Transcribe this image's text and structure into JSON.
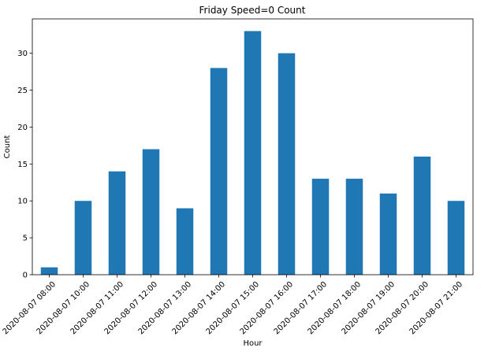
{
  "chart_data": {
    "type": "bar",
    "title": "Friday Speed=0 Count",
    "xlabel": "Hour",
    "ylabel": "Count",
    "categories": [
      "2020-08-07 08:00",
      "2020-08-07 10:00",
      "2020-08-07 11:00",
      "2020-08-07 12:00",
      "2020-08-07 13:00",
      "2020-08-07 14:00",
      "2020-08-07 15:00",
      "2020-08-07 16:00",
      "2020-08-07 17:00",
      "2020-08-07 18:00",
      "2020-08-07 19:00",
      "2020-08-07 20:00",
      "2020-08-07 21:00"
    ],
    "values": [
      1,
      10,
      14,
      17,
      9,
      28,
      33,
      30,
      13,
      13,
      11,
      16,
      10
    ],
    "ylim": [
      0,
      34.65
    ],
    "yticks": [
      0,
      5,
      10,
      15,
      20,
      25,
      30
    ],
    "grid": false,
    "legend": "none",
    "colors": {
      "bar": "#1f77b4"
    }
  }
}
